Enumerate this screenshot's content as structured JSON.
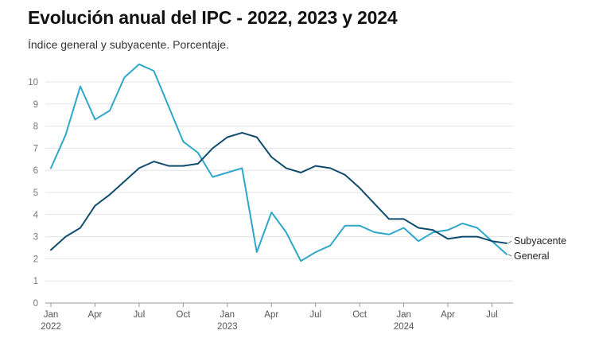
{
  "title": "Evolución anual del IPC - 2022, 2023 y 2024",
  "subtitle": "Índice general y subyacente. Porcentaje.",
  "chart_data": {
    "type": "line",
    "title": "Evolución anual del IPC - 2022, 2023 y 2024",
    "subtitle": "Índice general y subyacente. Porcentaje.",
    "xlabel": "",
    "ylabel": "",
    "ylim": [
      0,
      10
    ],
    "y_ticks": [
      0,
      1,
      2,
      3,
      4,
      5,
      6,
      7,
      8,
      9,
      10
    ],
    "grid": true,
    "x_ticks": [
      {
        "index": 0,
        "label": "Jan",
        "year": "2022"
      },
      {
        "index": 3,
        "label": "Apr",
        "year": ""
      },
      {
        "index": 6,
        "label": "Jul",
        "year": ""
      },
      {
        "index": 9,
        "label": "Oct",
        "year": ""
      },
      {
        "index": 12,
        "label": "Jan",
        "year": "2023"
      },
      {
        "index": 15,
        "label": "Apr",
        "year": ""
      },
      {
        "index": 18,
        "label": "Jul",
        "year": ""
      },
      {
        "index": 21,
        "label": "Oct",
        "year": ""
      },
      {
        "index": 24,
        "label": "Jan",
        "year": "2024"
      },
      {
        "index": 27,
        "label": "Apr",
        "year": ""
      },
      {
        "index": 30,
        "label": "Jul",
        "year": ""
      }
    ],
    "categories": [
      "2022-01",
      "2022-02",
      "2022-03",
      "2022-04",
      "2022-05",
      "2022-06",
      "2022-07",
      "2022-08",
      "2022-09",
      "2022-10",
      "2022-11",
      "2022-12",
      "2023-01",
      "2023-02",
      "2023-03",
      "2023-04",
      "2023-05",
      "2023-06",
      "2023-07",
      "2023-08",
      "2023-09",
      "2023-10",
      "2023-11",
      "2023-12",
      "2024-01",
      "2024-02",
      "2024-03",
      "2024-04",
      "2024-05",
      "2024-06",
      "2024-07",
      "2024-08"
    ],
    "series": [
      {
        "name": "General",
        "color": "#2ea7c9",
        "values": [
          6.1,
          7.6,
          9.8,
          8.3,
          8.7,
          10.2,
          10.8,
          10.5,
          8.9,
          7.3,
          6.8,
          5.7,
          5.9,
          6.1,
          2.3,
          4.1,
          3.2,
          1.9,
          2.3,
          2.6,
          3.5,
          3.5,
          3.2,
          3.1,
          3.4,
          2.8,
          3.2,
          3.3,
          3.6,
          3.4,
          2.8,
          2.2
        ]
      },
      {
        "name": "Subyacente",
        "color": "#0f4c6e",
        "values": [
          2.4,
          3.0,
          3.4,
          4.4,
          4.9,
          5.5,
          6.1,
          6.4,
          6.2,
          6.2,
          6.3,
          7.0,
          7.5,
          7.7,
          7.5,
          6.6,
          6.1,
          5.9,
          6.2,
          6.1,
          5.8,
          5.2,
          4.5,
          3.8,
          3.8,
          3.4,
          3.3,
          2.9,
          3.0,
          3.0,
          2.8,
          2.7
        ]
      }
    ],
    "series_label_order": [
      "Subyacente",
      "General"
    ]
  }
}
